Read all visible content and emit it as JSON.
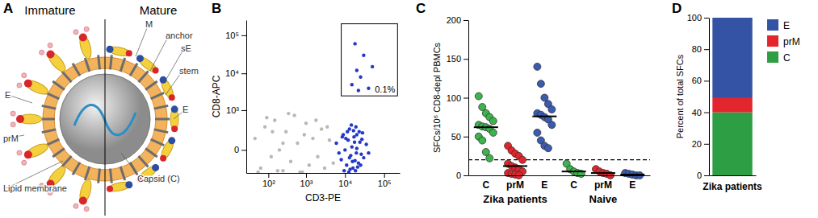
{
  "diagram": {
    "title": "A",
    "columns": [
      "Immature",
      "Mature"
    ],
    "labels": [
      "M",
      "anchor",
      "sE",
      "stem",
      "E",
      "prM",
      "E",
      "Lipid membrane",
      "Capsid (C)"
    ]
  },
  "chart_data": [
    {
      "title": "B",
      "type": "scatter",
      "log": true,
      "xlabel": "CD3-PE",
      "ylabel": "CD8-APC",
      "xlim": [
        20,
        250000
      ],
      "ylim": [
        -300,
        250000
      ],
      "xticks": [
        {
          "value": 100,
          "label": "10²"
        },
        {
          "value": 1000,
          "label": "10³"
        },
        {
          "value": 10000,
          "label": "10⁴"
        },
        {
          "value": 100000,
          "label": "10⁵"
        }
      ],
      "yticks": [
        0,
        {
          "value": 1000,
          "label": "10³"
        },
        {
          "value": 10000,
          "label": "10⁴"
        },
        {
          "value": 100000,
          "label": "10⁵"
        }
      ],
      "series": [
        {
          "color": "#b8b8b8",
          "x": [
            40,
            60,
            80,
            120,
            150,
            200,
            250,
            300,
            400,
            500,
            600,
            800,
            1000,
            1200,
            1500,
            2000,
            2500,
            3000,
            4000,
            5000,
            50,
            90,
            180,
            350,
            700,
            900,
            1800,
            3500,
            250,
            130
          ],
          "y": [
            100,
            -200,
            300,
            -50,
            500,
            0,
            -250,
            200,
            -100,
            700,
            50,
            -280,
            400,
            -150,
            100,
            -50,
            250,
            -200,
            80,
            -120,
            -280,
            600,
            -250,
            800,
            -280,
            150,
            500,
            300,
            50,
            200
          ]
        },
        {
          "color": "#2438c8",
          "x": [
            6000,
            8000,
            9000,
            10000,
            11000,
            12000,
            13000,
            14000,
            15000,
            16000,
            17000,
            18000,
            19000,
            20000,
            22000,
            24000,
            26000,
            28000,
            30000,
            35000,
            9500,
            12500,
            14500,
            16500,
            18500,
            21000,
            23000,
            7000,
            11500,
            13500,
            25000,
            40000,
            15500,
            17500,
            19500,
            10500,
            13000,
            20000,
            8500,
            27000
          ],
          "y": [
            50,
            -80,
            150,
            0,
            -150,
            80,
            250,
            -40,
            20,
            -200,
            120,
            -90,
            300,
            10,
            -120,
            60,
            -30,
            180,
            -60,
            40,
            -250,
            -280,
            350,
            220,
            -250,
            -180,
            200,
            -20,
            200,
            -220,
            -150,
            -20,
            -100,
            60,
            -20,
            100,
            -60,
            150,
            120,
            90
          ]
        },
        {
          "color": "#2438c8",
          "x": [
            15000,
            20000,
            25000,
            30000,
            40000,
            18000,
            50000,
            22000
          ],
          "y": [
            5000,
            12000,
            8000,
            30000,
            4000,
            60000,
            15000,
            3500
          ]
        }
      ],
      "gate": {
        "x": [
          8000,
          220000
        ],
        "y": [
          2500,
          200000
        ],
        "label": "0.1%"
      }
    },
    {
      "title": "C",
      "type": "dot",
      "ylabel": "SFCs/10⁶ CD8-depl PBMCs",
      "ylim": [
        0,
        200
      ],
      "yticks": [
        0,
        50,
        100,
        150,
        200
      ],
      "threshold": 20,
      "categories": [
        "C",
        "prM",
        "E"
      ],
      "colors": [
        "#3cb44b",
        "#e3242b",
        "#3a5bb0"
      ],
      "groups": [
        {
          "name": "Zika patients",
          "values": [
            [
              102,
              88,
              80,
              75,
              70,
              65,
              63,
              62,
              60,
              55,
              50,
              45,
              30,
              22
            ],
            [
              38,
              32,
              28,
              25,
              20,
              15,
              12,
              10,
              8,
              5,
              3,
              2,
              1,
              0
            ],
            [
              140,
              118,
              100,
              92,
              85,
              80,
              78,
              75,
              72,
              65,
              55,
              45,
              38,
              35
            ]
          ],
          "medians": [
            62,
            12,
            76
          ]
        },
        {
          "name": "Naive",
          "values": [
            [
              15,
              8,
              5,
              3,
              2
            ],
            [
              8,
              5,
              3,
              2,
              0
            ],
            [
              3,
              2,
              1,
              0,
              0
            ]
          ],
          "medians": [
            5,
            3,
            1
          ]
        }
      ]
    },
    {
      "title": "D",
      "type": "bar",
      "stacked": true,
      "legend": "right",
      "categories": [
        "Zika patients"
      ],
      "ylabel": "Percent of total SFCs",
      "ylim": [
        0,
        100
      ],
      "yticks": [
        0,
        20,
        40,
        60,
        80,
        100
      ],
      "series": [
        {
          "name": "C",
          "color": "#2e9e44",
          "values": [
            40
          ]
        },
        {
          "name": "prM",
          "color": "#e3262d",
          "values": [
            9
          ]
        },
        {
          "name": "E",
          "color": "#3553a5",
          "values": [
            51
          ]
        }
      ]
    }
  ]
}
